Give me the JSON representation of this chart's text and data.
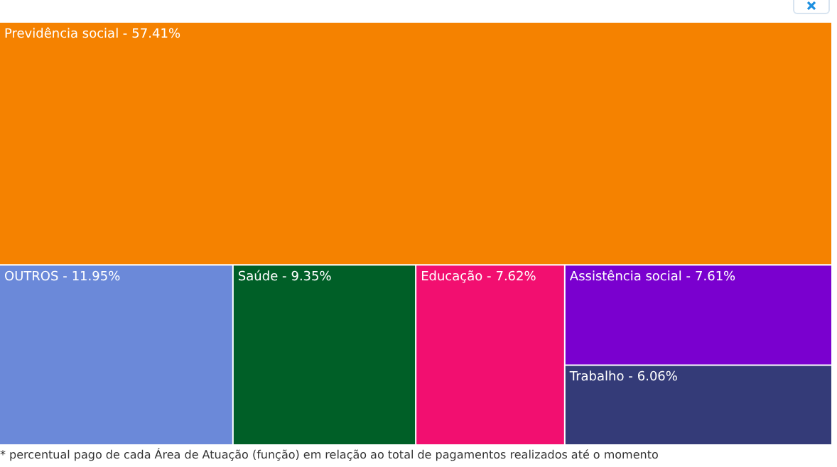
{
  "chart_data": {
    "type": "other",
    "categories": [
      "Previdência social -",
      "OUTROS -",
      "Saúde -",
      "Educação -",
      "Assistência social -",
      "Trabalho -"
    ],
    "value_labels": [
      "57.41%",
      "11.95%",
      "9.35%",
      "7.62%",
      "7.61%",
      "6.06%"
    ],
    "values": [
      57.41,
      11.95,
      9.35,
      7.62,
      7.61,
      6.06
    ],
    "colors": [
      "#f58200",
      "#6b89d9",
      "#005f27",
      "#f20f70",
      "#7a00cf",
      "#343b78"
    ],
    "annotations": [
      "* percentual pago de cada Área de Atuação (função) em relação ao total de pagamentos realizados até o momento"
    ]
  }
}
